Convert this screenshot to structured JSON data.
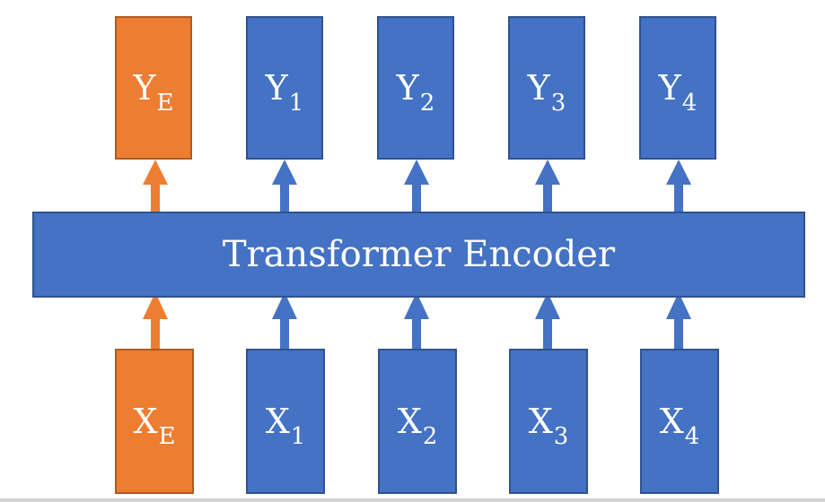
{
  "encoder": {
    "label": "Transformer Encoder"
  },
  "outputs": [
    {
      "base": "Y",
      "sub": "E",
      "color": "orange"
    },
    {
      "base": "Y",
      "sub": "1",
      "color": "blue"
    },
    {
      "base": "Y",
      "sub": "2",
      "color": "blue"
    },
    {
      "base": "Y",
      "sub": "3",
      "color": "blue"
    },
    {
      "base": "Y",
      "sub": "4",
      "color": "blue"
    }
  ],
  "inputs": [
    {
      "base": "X",
      "sub": "E",
      "color": "orange"
    },
    {
      "base": "X",
      "sub": "1",
      "color": "blue"
    },
    {
      "base": "X",
      "sub": "2",
      "color": "blue"
    },
    {
      "base": "X",
      "sub": "3",
      "color": "blue"
    },
    {
      "base": "X",
      "sub": "4",
      "color": "blue"
    }
  ],
  "colors": {
    "orange": "#ed7d31",
    "blue": "#4472c4"
  }
}
